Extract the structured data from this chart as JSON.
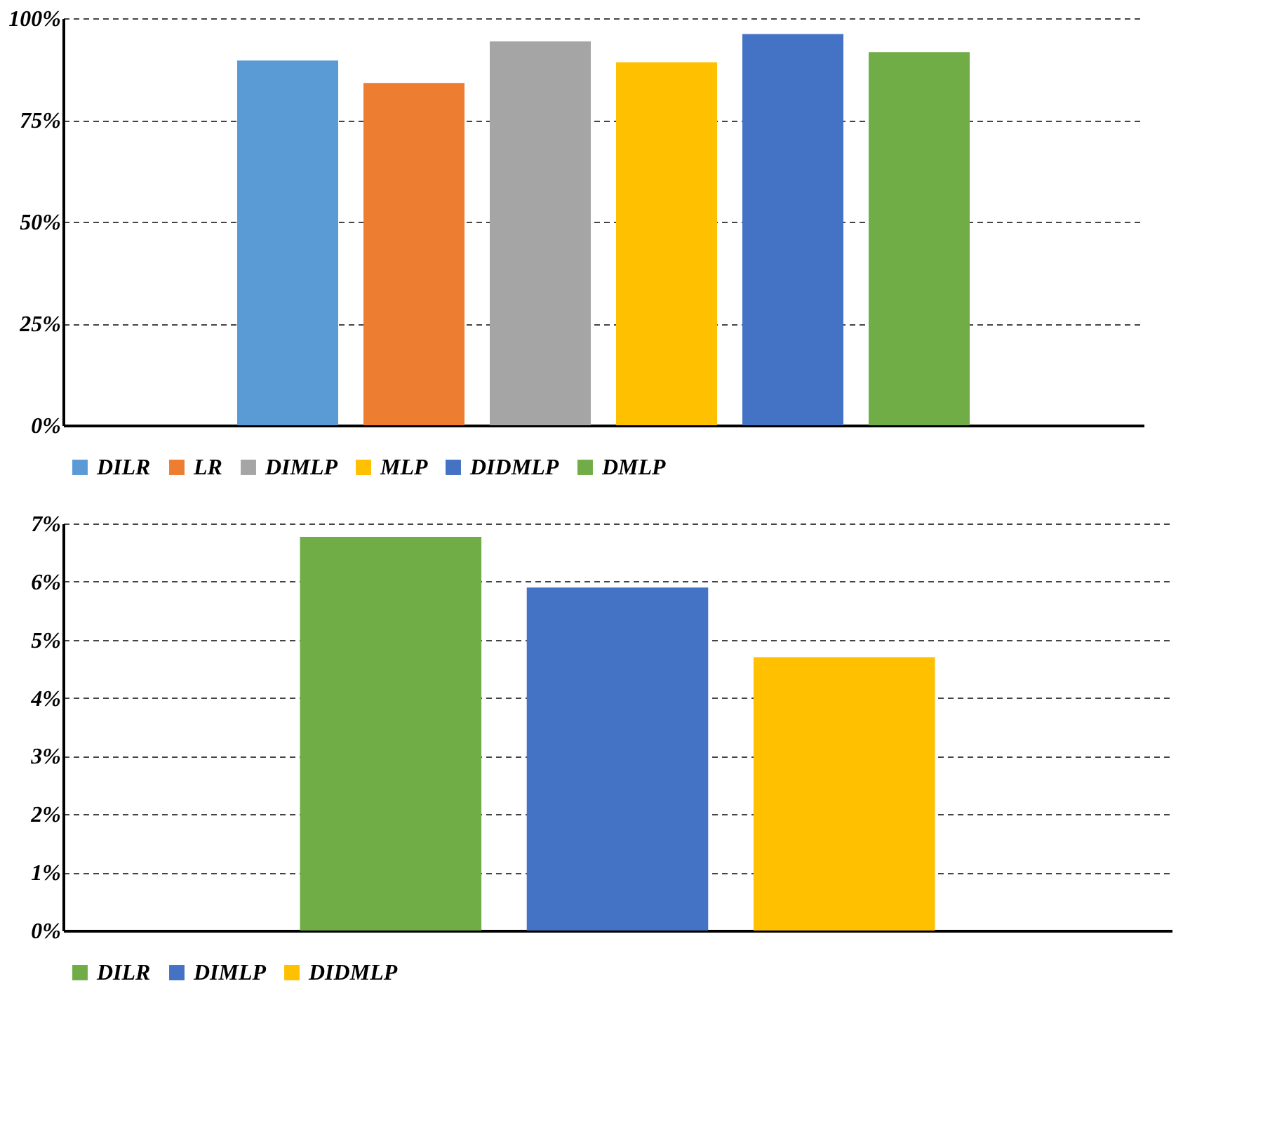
{
  "chart_data": [
    {
      "type": "bar",
      "categories": [
        null
      ],
      "series": [
        {
          "name": "DILR",
          "color": "#5b9bd5",
          "values": [
            89.6
          ]
        },
        {
          "name": "LR",
          "color": "#ed7d31",
          "values": [
            84.1
          ]
        },
        {
          "name": "DIMLP",
          "color": "#a5a5a5",
          "values": [
            94.3
          ]
        },
        {
          "name": "MLP",
          "color": "#ffc000",
          "values": [
            89.2
          ]
        },
        {
          "name": "DIDMLP",
          "color": "#4472c4",
          "values": [
            96.1
          ]
        },
        {
          "name": "DMLP",
          "color": "#70ad47",
          "values": [
            91.7
          ]
        }
      ],
      "ylim": [
        0,
        100
      ],
      "yticks": [
        {
          "value": 0,
          "label": "0%"
        },
        {
          "value": 25,
          "label": "25%"
        },
        {
          "value": 50,
          "label": "50%"
        },
        {
          "value": 75,
          "label": "75%"
        },
        {
          "value": 100,
          "label": "100%"
        }
      ],
      "grid": "y",
      "legend": "bottom",
      "tick_labels": "y"
    },
    {
      "type": "bar",
      "categories": [
        null
      ],
      "series": [
        {
          "name": "DILR",
          "color": "#70ad47",
          "values": [
            6.77
          ]
        },
        {
          "name": "DIMLP",
          "color": "#4472c4",
          "values": [
            5.9
          ]
        },
        {
          "name": "DIDMLP",
          "color": "#ffc000",
          "values": [
            4.7
          ]
        }
      ],
      "ylim": [
        0,
        7
      ],
      "yticks": [
        {
          "value": 0,
          "label": "0%"
        },
        {
          "value": 1,
          "label": "1%"
        },
        {
          "value": 2,
          "label": "2%"
        },
        {
          "value": 3,
          "label": "3%"
        },
        {
          "value": 4,
          "label": "4%"
        },
        {
          "value": 5,
          "label": "5%"
        },
        {
          "value": 6,
          "label": "6%"
        },
        {
          "value": 7,
          "label": "7%"
        }
      ],
      "grid": "y",
      "legend": "bottom",
      "tick_labels": "y"
    }
  ]
}
